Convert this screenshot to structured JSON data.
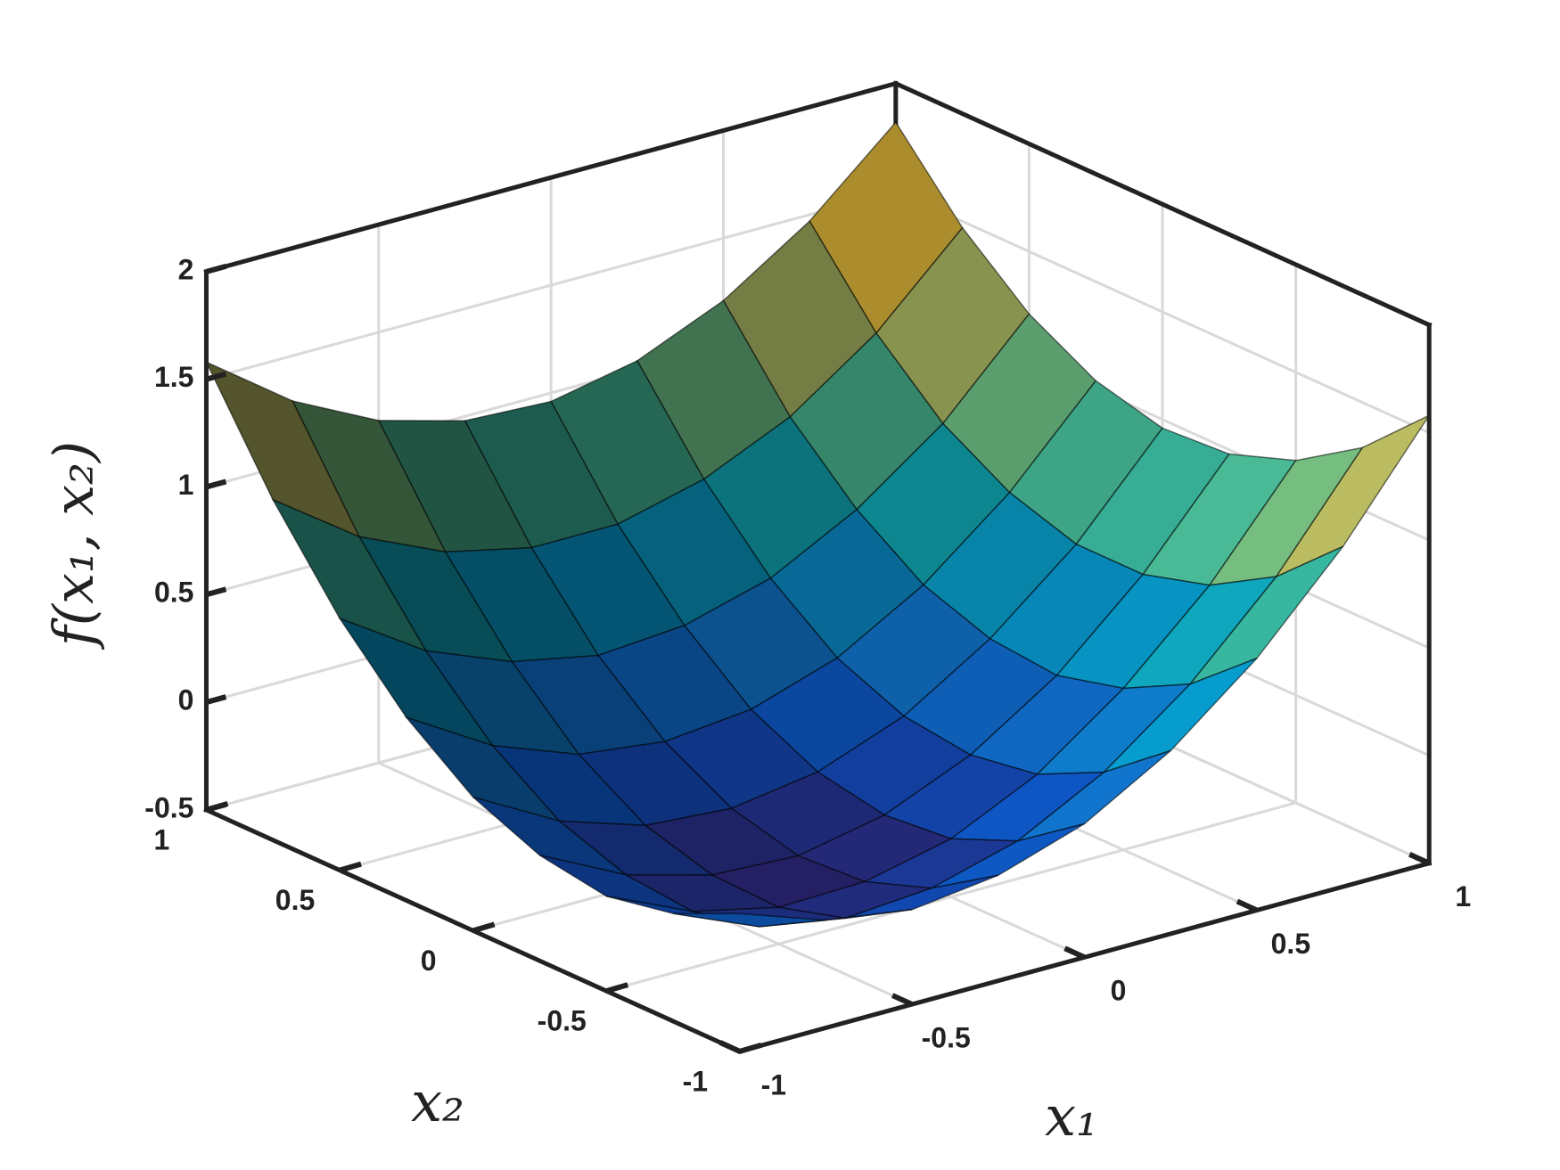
{
  "chart_data": {
    "type": "surface",
    "xlabel": "x₁",
    "ylabel": "x₂",
    "zlabel": "f(x₁, x₂)",
    "x": [
      -1,
      -0.75,
      -0.5,
      -0.25,
      0,
      0.25,
      0.5,
      0.75,
      1
    ],
    "y": [
      -1,
      -0.75,
      -0.5,
      -0.25,
      0,
      0.25,
      0.5,
      0.75,
      1
    ],
    "z": [
      [
        0.14,
        0,
        -0.06,
        -0.01,
        0.12,
        0.35,
        0.67,
        1.08,
        1.58
      ],
      [
        0,
        -0.17,
        -0.24,
        -0.21,
        -0.1,
        0.11,
        0.41,
        0.8,
        1.29
      ],
      [
        -0.06,
        -0.24,
        -0.33,
        -0.32,
        -0.23,
        -0.04,
        0.25,
        0.62,
        1.09
      ],
      [
        -0.01,
        -0.21,
        -0.32,
        -0.34,
        -0.26,
        -0.09,
        0.17,
        0.53,
        0.98
      ],
      [
        0.12,
        -0.1,
        -0.23,
        -0.26,
        -0.2,
        -0.05,
        0.2,
        0.53,
        0.96
      ],
      [
        0.35,
        0.11,
        -0.04,
        -0.09,
        -0.05,
        0.08,
        0.31,
        0.63,
        1.04
      ],
      [
        0.67,
        0.41,
        0.25,
        0.17,
        0.2,
        0.31,
        0.52,
        0.81,
        1.21
      ],
      [
        1.08,
        0.8,
        0.62,
        0.53,
        0.53,
        0.63,
        0.81,
        1.09,
        1.47
      ],
      [
        1.58,
        1.29,
        1.09,
        0.98,
        0.96,
        1.04,
        1.21,
        1.47,
        1.82
      ]
    ],
    "xlim": [
      -1,
      1
    ],
    "ylim": [
      -1,
      1
    ],
    "zlim": [
      -0.5,
      2
    ],
    "xticks": [
      -1,
      -0.5,
      0,
      0.5,
      1
    ],
    "yticks": [
      -1,
      -0.5,
      0,
      0.5,
      1
    ],
    "zticks": [
      -0.5,
      0,
      0.5,
      1,
      1.5,
      2
    ],
    "grid": true,
    "colormap": "parula"
  }
}
